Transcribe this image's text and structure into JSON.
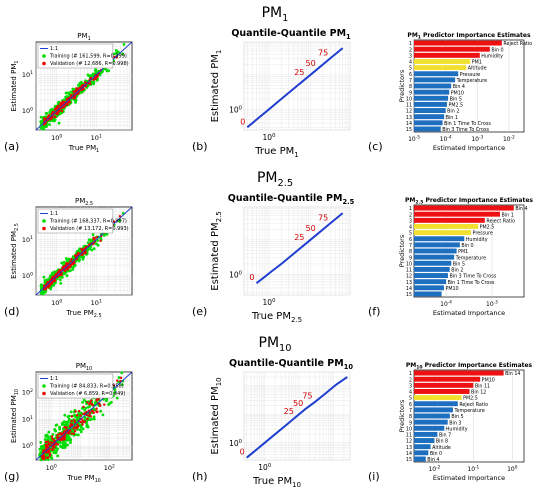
{
  "rows": [
    {
      "heading_main": "PM",
      "heading_sub": "1"
    },
    {
      "heading_main": "PM",
      "heading_sub": "2.5"
    },
    {
      "heading_main": "PM",
      "heading_sub": "10"
    }
  ],
  "panel_letters": [
    "(a)",
    "(b)",
    "(c)",
    "(d)",
    "(e)",
    "(f)",
    "(g)",
    "(h)",
    "(i)"
  ],
  "colors": {
    "training": "#00dd00",
    "validation": "#ee0000",
    "line": "#1f3fd0",
    "bar_top": "#ee1111",
    "bar_mid": "#f2e030",
    "bar_low": "#1f6fc0"
  },
  "chart_data": [
    {
      "type": "scatter",
      "row": 0,
      "title_main": "PM",
      "title_sub": "1",
      "xlabel_main": "True PM",
      "xlabel_sub": "1",
      "ylabel_main": "Estimated PM",
      "ylabel_sub": "1",
      "x_scale": "log",
      "y_scale": "log",
      "xlim": [
        0.3,
        80
      ],
      "ylim": [
        0.3,
        80
      ],
      "x_ticks": [
        {
          "v": 1,
          "label": "10",
          "exp": "0"
        },
        {
          "v": 10,
          "label": "10",
          "exp": "1"
        }
      ],
      "y_ticks": [
        {
          "v": 1,
          "label": "10",
          "exp": "0"
        },
        {
          "v": 10,
          "label": "10",
          "exp": "1"
        }
      ],
      "legend": [
        "1:1",
        "Training (# 161,599, R=0.999)",
        "Validation (# 12,686, R=0.998)"
      ],
      "legend_position": "top-left",
      "grid": true
    },
    {
      "type": "line",
      "row": 0,
      "title": "Quantile-Quantile PM",
      "title_sub": "1",
      "xlabel_main": "True PM",
      "xlabel_sub": "1",
      "ylabel_main": "Estimated PM",
      "ylabel_sub": "1",
      "x_scale": "log",
      "y_scale": "log",
      "xlim": [
        0.25,
        90
      ],
      "ylim": [
        0.25,
        90
      ],
      "x_ticks": [
        {
          "v": 1,
          "label": "10",
          "exp": "0"
        }
      ],
      "y_ticks": [
        {
          "v": 1,
          "label": "10",
          "exp": "0"
        }
      ],
      "x": [
        0.3,
        0.6,
        1,
        2,
        4,
        8,
        15,
        30,
        60
      ],
      "y": [
        0.3,
        0.6,
        1,
        2,
        4,
        8,
        15,
        30,
        60
      ],
      "annotations": [
        {
          "text": "0",
          "x": 0.3,
          "y": 0.3
        },
        {
          "text": "25",
          "x": 8,
          "y": 8
        },
        {
          "text": "50",
          "x": 15,
          "y": 15
        },
        {
          "text": "75",
          "x": 30,
          "y": 30
        }
      ],
      "grid": true
    },
    {
      "type": "bar",
      "orientation": "horizontal",
      "row": 0,
      "title_main": "PM",
      "title_sub": "1",
      "title_rest": " Predictor Importance Estimates",
      "xlabel": "Estimated Importance",
      "ylabel": "Predictors",
      "x_scale": "log",
      "xlim": [
        1e-05,
        0.03
      ],
      "x_ticks": [
        {
          "v": 1e-05,
          "label": "10",
          "exp": "-5"
        },
        {
          "v": 0.0001,
          "label": "10",
          "exp": "-4"
        },
        {
          "v": 0.001,
          "label": "10",
          "exp": "-3"
        },
        {
          "v": 0.01,
          "label": "10",
          "exp": "-2"
        }
      ],
      "categories": [
        "Reject Ratio",
        "Bin 0",
        "Humidity",
        "PM1",
        "Altitude",
        "Pressure",
        "Temperature",
        "Bin 4",
        "PM10",
        "Bin 5",
        "PM2.5",
        "Bin 2",
        "Bin 1",
        "Bin 1 Time To Cross",
        "Bin 3 Time To Cross"
      ],
      "ranks": [
        "1",
        "2",
        "3",
        "4",
        "5",
        "6",
        "7",
        "8",
        "9",
        "10",
        "11",
        "12",
        "13",
        "14",
        "15"
      ],
      "values": [
        0.006,
        0.0025,
        0.0012,
        0.0006,
        0.00045,
        0.00025,
        0.0002,
        0.00015,
        0.00013,
        0.00012,
        0.00011,
        0.0001,
        9e-05,
        8e-05,
        7e-05
      ],
      "top_red": 3,
      "top_yellow": 5
    },
    {
      "type": "scatter",
      "row": 1,
      "title_main": "PM",
      "title_sub": "2.5",
      "xlabel_main": "True PM",
      "xlabel_sub": "2.5",
      "ylabel_main": "Estimated PM",
      "ylabel_sub": "2.5",
      "x_scale": "log",
      "y_scale": "log",
      "xlim": [
        0.3,
        80
      ],
      "ylim": [
        0.3,
        80
      ],
      "x_ticks": [
        {
          "v": 1,
          "label": "10",
          "exp": "0"
        },
        {
          "v": 10,
          "label": "10",
          "exp": "1"
        }
      ],
      "y_ticks": [
        {
          "v": 1,
          "label": "10",
          "exp": "0"
        },
        {
          "v": 10,
          "label": "10",
          "exp": "1"
        }
      ],
      "legend": [
        "1:1",
        "Training (# 168,337, R=0.997)",
        "Validation (# 13,172, R=0.993)"
      ],
      "legend_position": "top-left",
      "grid": true
    },
    {
      "type": "line",
      "row": 1,
      "title": "Quantile-Quantile PM",
      "title_sub": "2.5",
      "xlabel_main": "True PM",
      "xlabel_sub": "2.5",
      "ylabel_main": "Estimated PM",
      "ylabel_sub": "2.5",
      "x_scale": "log",
      "y_scale": "log",
      "xlim": [
        0.25,
        90
      ],
      "ylim": [
        0.25,
        90
      ],
      "x_ticks": [
        {
          "v": 1,
          "label": "10",
          "exp": "0"
        }
      ],
      "y_ticks": [
        {
          "v": 1,
          "label": "10",
          "exp": "0"
        }
      ],
      "x": [
        0.5,
        0.8,
        1.2,
        2,
        4,
        8,
        15,
        30,
        60
      ],
      "y": [
        0.55,
        0.85,
        1.25,
        2,
        4,
        8,
        15,
        30,
        60
      ],
      "annotations": [
        {
          "text": "0",
          "x": 0.5,
          "y": 0.55
        },
        {
          "text": "25",
          "x": 8,
          "y": 8
        },
        {
          "text": "50",
          "x": 15,
          "y": 15
        },
        {
          "text": "75",
          "x": 30,
          "y": 30
        }
      ],
      "grid": true
    },
    {
      "type": "bar",
      "orientation": "horizontal",
      "row": 1,
      "title_main": "PM",
      "title_sub": "2.5",
      "title_rest": " Predictor Importance Estimates",
      "xlabel": "Estimated Importance",
      "ylabel": "Predictors",
      "x_scale": "log",
      "xlim": [
        2e-05,
        0.005
      ],
      "x_ticks": [
        {
          "v": 0.0001,
          "label": "10",
          "exp": "-4"
        },
        {
          "v": 0.001,
          "label": "10",
          "exp": "-3"
        }
      ],
      "categories": [
        "Bin 4",
        "Bin 1",
        "Reject Ratio",
        "PM2.5",
        "Pressure",
        "Humidity",
        "Bin 0",
        "PM1",
        "Temperature",
        "Bin 5",
        "Bin 2",
        "Bin 3 Time To Cross",
        "Bin 1 Time To Cross",
        "PM10",
        ""
      ],
      "ranks": [
        "1",
        "2",
        "3",
        "4",
        "5",
        "6",
        "7",
        "8",
        "9",
        "10",
        "11",
        "12",
        "13",
        "14",
        "15"
      ],
      "values": [
        0.003,
        0.0015,
        0.0007,
        0.0005,
        0.00035,
        0.00025,
        0.0002,
        0.00017,
        0.00015,
        0.00013,
        0.00012,
        0.00011,
        0.0001,
        9e-05,
        8e-05
      ],
      "top_red": 3,
      "top_yellow": 5
    },
    {
      "type": "scatter",
      "row": 2,
      "title_main": "PM",
      "title_sub": "10",
      "xlabel_main": "True PM",
      "xlabel_sub": "10",
      "ylabel_main": "Estimated PM",
      "ylabel_sub": "10",
      "x_scale": "log",
      "y_scale": "log",
      "xlim": [
        0.3,
        600
      ],
      "ylim": [
        0.3,
        600
      ],
      "x_ticks": [
        {
          "v": 1,
          "label": "10",
          "exp": "0"
        },
        {
          "v": 100,
          "label": "10",
          "exp": "2"
        }
      ],
      "y_ticks": [
        {
          "v": 1,
          "label": "10",
          "exp": "0"
        },
        {
          "v": 10,
          "label": "10",
          "exp": "1"
        },
        {
          "v": 100,
          "label": "10",
          "exp": "2"
        }
      ],
      "legend": [
        "1:1",
        "Training (# 84,833, R=0.958)",
        "Validation (# 6,859, R=0.849)"
      ],
      "legend_position": "top-left",
      "grid": true
    },
    {
      "type": "line",
      "row": 2,
      "title": "Quantile-Quantile PM",
      "title_sub": "10",
      "xlabel_main": "True PM",
      "xlabel_sub": "10",
      "ylabel_main": "Estimated PM",
      "ylabel_sub": "10",
      "x_scale": "log",
      "y_scale": "log",
      "xlim": [
        0.25,
        300
      ],
      "ylim": [
        0.25,
        300
      ],
      "x_ticks": [
        {
          "v": 1,
          "label": "10",
          "exp": "0"
        }
      ],
      "y_ticks": [
        {
          "v": 1,
          "label": "10",
          "exp": "0"
        }
      ],
      "x": [
        0.3,
        0.6,
        1,
        2,
        4,
        8,
        15,
        30,
        60,
        120,
        250
      ],
      "y": [
        0.3,
        0.6,
        1,
        2,
        4,
        8,
        15,
        28,
        55,
        110,
        200
      ],
      "annotations": [
        {
          "text": "0",
          "x": 0.3,
          "y": 0.3
        },
        {
          "text": "25",
          "x": 8,
          "y": 8
        },
        {
          "text": "50",
          "x": 15,
          "y": 15
        },
        {
          "text": "75",
          "x": 28,
          "y": 28
        }
      ],
      "grid": true
    },
    {
      "type": "bar",
      "orientation": "horizontal",
      "row": 2,
      "title_main": "PM",
      "title_sub": "10",
      "title_rest": " Predictor Importance Estimates",
      "xlabel": "Estimated Importance",
      "ylabel": "Predictors",
      "x_scale": "log",
      "xlim": [
        0.003,
        2
      ],
      "x_ticks": [
        {
          "v": 0.01,
          "label": "10",
          "exp": "-2"
        },
        {
          "v": 0.1,
          "label": "10",
          "exp": "-1"
        },
        {
          "v": 1,
          "label": "10",
          "exp": "0"
        }
      ],
      "categories": [
        "Bin 14",
        "PM10",
        "Bin 11",
        "Bin 12",
        "PM2.5",
        "Reject Ratio",
        "Temperature",
        "Bin 5",
        "Bin 3",
        "Humidity",
        "Bin 7",
        "Bin 8",
        "Altitude",
        "Bin 0",
        "Bin 4"
      ],
      "ranks": [
        "1",
        "2",
        "3",
        "4",
        "5",
        "6",
        "7",
        "8",
        "9",
        "10",
        "11",
        "12",
        "13",
        "14",
        "15"
      ],
      "values": [
        0.6,
        0.15,
        0.1,
        0.08,
        0.05,
        0.04,
        0.03,
        0.025,
        0.022,
        0.018,
        0.012,
        0.01,
        0.008,
        0.007,
        0.006
      ],
      "top_red": 4,
      "top_yellow": 5
    }
  ]
}
